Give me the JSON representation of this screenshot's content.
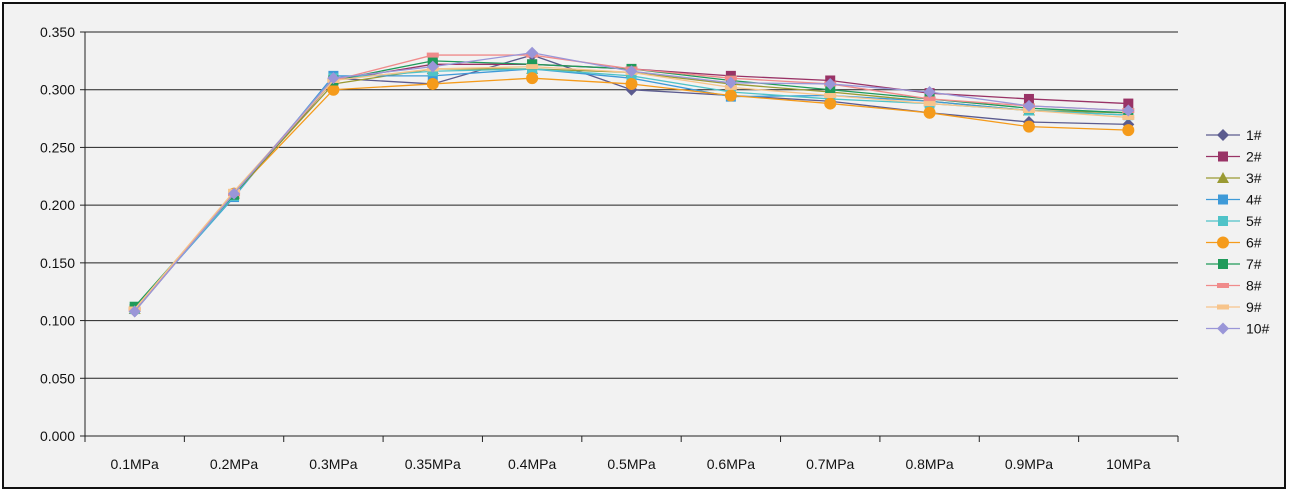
{
  "chart_data": {
    "type": "line",
    "categories": [
      "0.1MPa",
      "0.2MPa",
      "0.3MPa",
      "0.35MPa",
      "0.4MPa",
      "0.5MPa",
      "0.6MPa",
      "0.7MPa",
      "0.8MPa",
      "0.9MPa",
      "10MPa"
    ],
    "ylim": [
      0,
      0.35
    ],
    "yticks": [
      "0.000",
      "0.050",
      "0.100",
      "0.150",
      "0.200",
      "0.250",
      "0.300",
      "0.350"
    ],
    "grid": true,
    "legend_position": "right",
    "series": [
      {
        "name": "1#",
        "color": "#5b5b8f",
        "marker": "diamond",
        "values": [
          0.108,
          0.21,
          0.31,
          0.305,
          0.33,
          0.3,
          0.295,
          0.29,
          0.28,
          0.272,
          0.27
        ]
      },
      {
        "name": "2#",
        "color": "#993366",
        "marker": "square",
        "values": [
          0.11,
          0.208,
          0.308,
          0.322,
          0.322,
          0.318,
          0.312,
          0.308,
          0.297,
          0.292,
          0.288
        ]
      },
      {
        "name": "3#",
        "color": "#9a9a33",
        "marker": "triangle",
        "values": [
          0.11,
          0.21,
          0.305,
          0.318,
          0.318,
          0.315,
          0.305,
          0.298,
          0.29,
          0.282,
          0.28
        ]
      },
      {
        "name": "4#",
        "color": "#3e9ad8",
        "marker": "square",
        "values": [
          0.11,
          0.207,
          0.312,
          0.312,
          0.318,
          0.31,
          0.294,
          0.295,
          0.29,
          0.282,
          0.278
        ]
      },
      {
        "name": "5#",
        "color": "#4fc3c8",
        "marker": "square",
        "values": [
          0.11,
          0.208,
          0.31,
          0.316,
          0.318,
          0.312,
          0.298,
          0.292,
          0.288,
          0.282,
          0.278
        ]
      },
      {
        "name": "6#",
        "color": "#f59b1b",
        "marker": "circle",
        "values": [
          0.11,
          0.21,
          0.3,
          0.305,
          0.31,
          0.305,
          0.295,
          0.288,
          0.28,
          0.268,
          0.265
        ]
      },
      {
        "name": "7#",
        "color": "#1f9a5a",
        "marker": "square",
        "values": [
          0.112,
          0.209,
          0.308,
          0.325,
          0.322,
          0.318,
          0.308,
          0.3,
          0.292,
          0.284,
          0.28
        ]
      },
      {
        "name": "8#",
        "color": "#f08b8b",
        "marker": "dash",
        "values": [
          0.11,
          0.21,
          0.308,
          0.33,
          0.33,
          0.318,
          0.31,
          0.305,
          0.292,
          0.286,
          0.282
        ]
      },
      {
        "name": "9#",
        "color": "#f7c48b",
        "marker": "dash",
        "values": [
          0.11,
          0.212,
          0.308,
          0.318,
          0.32,
          0.315,
          0.302,
          0.295,
          0.288,
          0.282,
          0.276
        ]
      },
      {
        "name": "10#",
        "color": "#9a96d8",
        "marker": "diamond",
        "values": [
          0.108,
          0.21,
          0.31,
          0.32,
          0.332,
          0.316,
          0.306,
          0.305,
          0.298,
          0.286,
          0.282
        ]
      }
    ]
  }
}
